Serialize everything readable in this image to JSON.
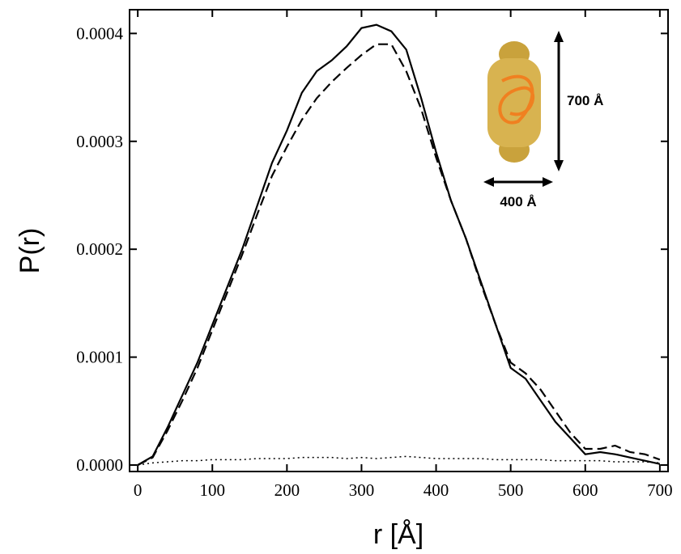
{
  "chart_data": {
    "type": "line",
    "x_label": "r [Å]",
    "y_label": "P(r)",
    "annotations": [
      "700 Å",
      "400 Å"
    ],
    "x": [
      0,
      20,
      40,
      60,
      80,
      100,
      120,
      140,
      160,
      180,
      200,
      220,
      240,
      260,
      280,
      300,
      320,
      340,
      360,
      380,
      400,
      420,
      440,
      460,
      480,
      500,
      520,
      540,
      560,
      580,
      600,
      620,
      640,
      660,
      680,
      700
    ],
    "series": [
      {
        "color": "#000000",
        "style": "solid",
        "values": [
          0,
          8e-06,
          3.5e-05,
          6.5e-05,
          9.5e-05,
          0.00013,
          0.000165,
          0.0002,
          0.00024,
          0.00028,
          0.00031,
          0.000345,
          0.000365,
          0.000375,
          0.000388,
          0.000405,
          0.000408,
          0.000402,
          0.000385,
          0.00034,
          0.00029,
          0.000245,
          0.00021,
          0.00017,
          0.00013,
          9e-05,
          8e-05,
          6e-05,
          4e-05,
          2.5e-05,
          1e-05,
          1.2e-05,
          1e-05,
          7e-06,
          4e-06,
          1e-06
        ]
      },
      {
        "color": "#000000",
        "style": "dashed",
        "values": [
          0,
          7e-06,
          3.2e-05,
          6e-05,
          9e-05,
          0.000125,
          0.00016,
          0.000195,
          0.000232,
          0.000268,
          0.000295,
          0.00032,
          0.00034,
          0.000355,
          0.000368,
          0.00038,
          0.00039,
          0.00039,
          0.000365,
          0.00033,
          0.000285,
          0.000245,
          0.00021,
          0.000168,
          0.00013,
          9.5e-05,
          8.5e-05,
          7e-05,
          5e-05,
          3e-05,
          1.5e-05,
          1.5e-05,
          1.8e-05,
          1.2e-05,
          1e-05,
          5e-06
        ]
      },
      {
        "color": "#000000",
        "style": "dotted",
        "values": [
          0,
          2e-06,
          3e-06,
          4e-06,
          4e-06,
          5e-06,
          5e-06,
          5e-06,
          6e-06,
          6e-06,
          6e-06,
          7e-06,
          7e-06,
          7e-06,
          6e-06,
          7e-06,
          6e-06,
          7e-06,
          8e-06,
          7e-06,
          6e-06,
          6e-06,
          6e-06,
          6e-06,
          5e-06,
          5e-06,
          5e-06,
          5e-06,
          4e-06,
          4e-06,
          4e-06,
          4e-06,
          3e-06,
          3e-06,
          3e-06,
          2e-06
        ]
      }
    ],
    "xlim": [
      -11,
      711
    ],
    "ylim": [
      -6e-06,
      0.000422
    ],
    "xticks": [
      0,
      100,
      200,
      300,
      400,
      500,
      600,
      700
    ],
    "yticks": [
      {
        "value": 0,
        "label": "0.0000"
      },
      {
        "value": 0.0001,
        "label": "0.0001"
      },
      {
        "value": 0.0002,
        "label": "0.0002"
      },
      {
        "value": 0.0003,
        "label": "0.0003"
      },
      {
        "value": 0.0004,
        "label": "0.0004"
      }
    ]
  }
}
